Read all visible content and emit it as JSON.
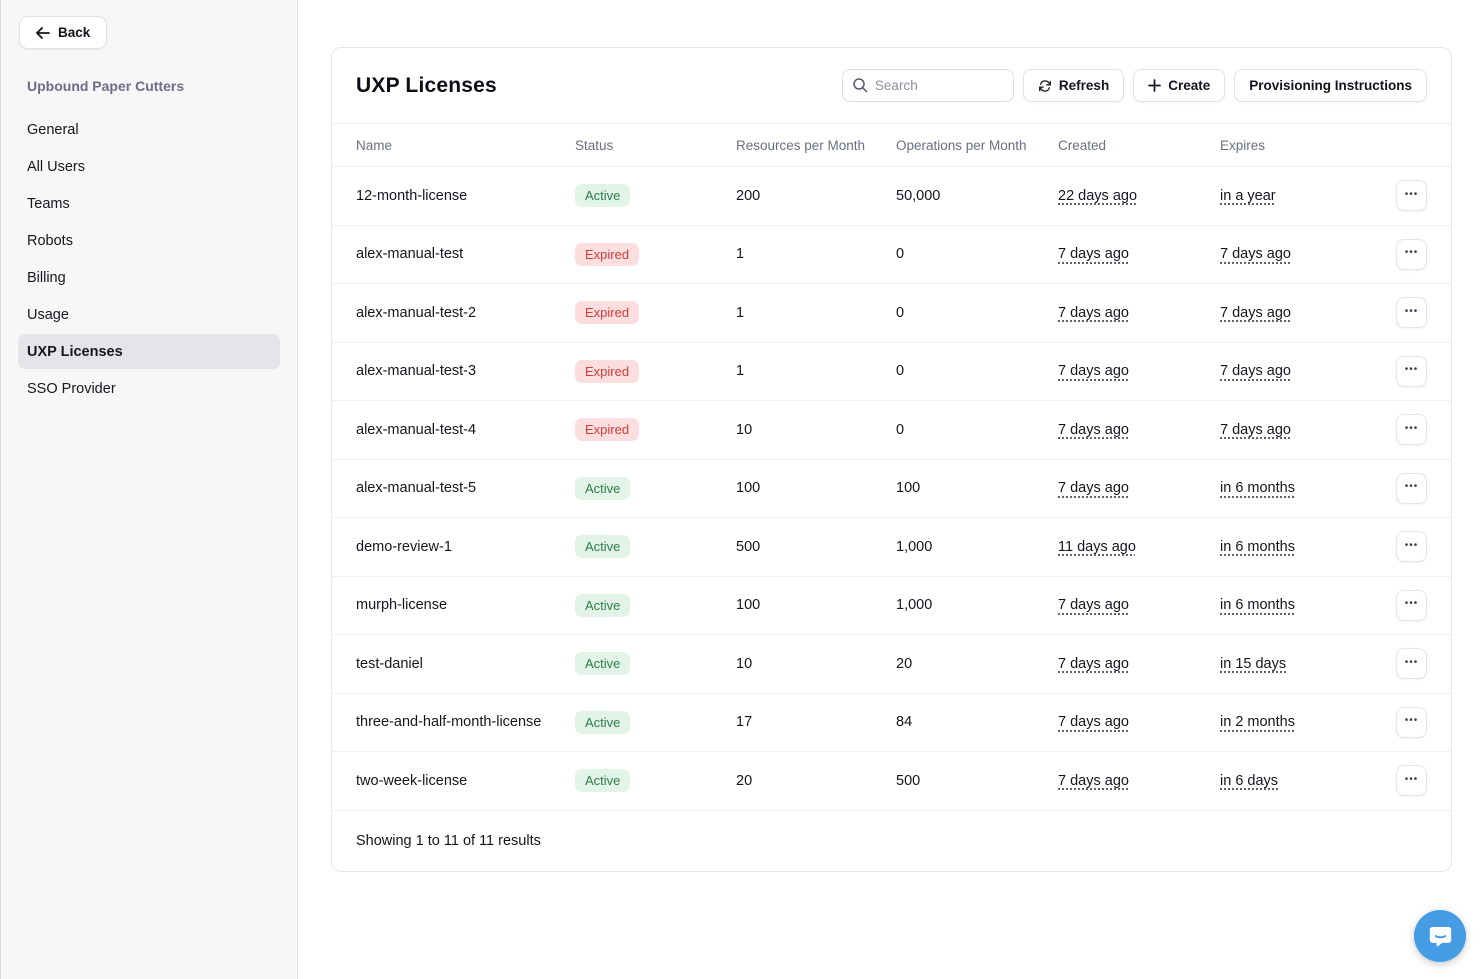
{
  "sidebar": {
    "back_label": "Back",
    "org_title": "Upbound Paper Cutters",
    "items": [
      {
        "label": "General",
        "selected": false
      },
      {
        "label": "All Users",
        "selected": false
      },
      {
        "label": "Teams",
        "selected": false
      },
      {
        "label": "Robots",
        "selected": false
      },
      {
        "label": "Billing",
        "selected": false
      },
      {
        "label": "Usage",
        "selected": false
      },
      {
        "label": "UXP Licenses",
        "selected": true
      },
      {
        "label": "SSO Provider",
        "selected": false
      }
    ]
  },
  "header": {
    "title": "UXP Licenses",
    "search_placeholder": "Search",
    "refresh_label": "Refresh",
    "create_label": "Create",
    "provisioning_label": "Provisioning Instructions"
  },
  "table": {
    "columns": [
      "Name",
      "Status",
      "Resources per Month",
      "Operations per Month",
      "Created",
      "Expires"
    ],
    "rows": [
      {
        "name": "12-month-license",
        "status": "Active",
        "resources": "200",
        "operations": "50,000",
        "created": "22 days ago",
        "expires": "in a year"
      },
      {
        "name": "alex-manual-test",
        "status": "Expired",
        "resources": "1",
        "operations": "0",
        "created": "7 days ago",
        "expires": "7 days ago"
      },
      {
        "name": "alex-manual-test-2",
        "status": "Expired",
        "resources": "1",
        "operations": "0",
        "created": "7 days ago",
        "expires": "7 days ago"
      },
      {
        "name": "alex-manual-test-3",
        "status": "Expired",
        "resources": "1",
        "operations": "0",
        "created": "7 days ago",
        "expires": "7 days ago"
      },
      {
        "name": "alex-manual-test-4",
        "status": "Expired",
        "resources": "10",
        "operations": "0",
        "created": "7 days ago",
        "expires": "7 days ago"
      },
      {
        "name": "alex-manual-test-5",
        "status": "Active",
        "resources": "100",
        "operations": "100",
        "created": "7 days ago",
        "expires": "in 6 months"
      },
      {
        "name": "demo-review-1",
        "status": "Active",
        "resources": "500",
        "operations": "1,000",
        "created": "11 days ago",
        "expires": "in 6 months"
      },
      {
        "name": "murph-license",
        "status": "Active",
        "resources": "100",
        "operations": "1,000",
        "created": "7 days ago",
        "expires": "in 6 months"
      },
      {
        "name": "test-daniel",
        "status": "Active",
        "resources": "10",
        "operations": "20",
        "created": "7 days ago",
        "expires": "in 15 days"
      },
      {
        "name": "three-and-half-month-license",
        "status": "Active",
        "resources": "17",
        "operations": "84",
        "created": "7 days ago",
        "expires": "in 2 months"
      },
      {
        "name": "two-week-license",
        "status": "Active",
        "resources": "20",
        "operations": "500",
        "created": "7 days ago",
        "expires": "in 6 days"
      }
    ],
    "footer": "Showing 1 to 11 of 11 results"
  },
  "icons": {
    "back": "←",
    "search": "magnifier",
    "refresh": "circular-arrows",
    "plus": "+",
    "ellipsis": "•••",
    "chat": "speech-bubble-smile"
  },
  "colors": {
    "active_bg": "#e2f3e7",
    "active_text": "#2e7d48",
    "expired_bg": "#fcdede",
    "expired_text": "#d03c3c",
    "chat_button": "#459ce5"
  }
}
